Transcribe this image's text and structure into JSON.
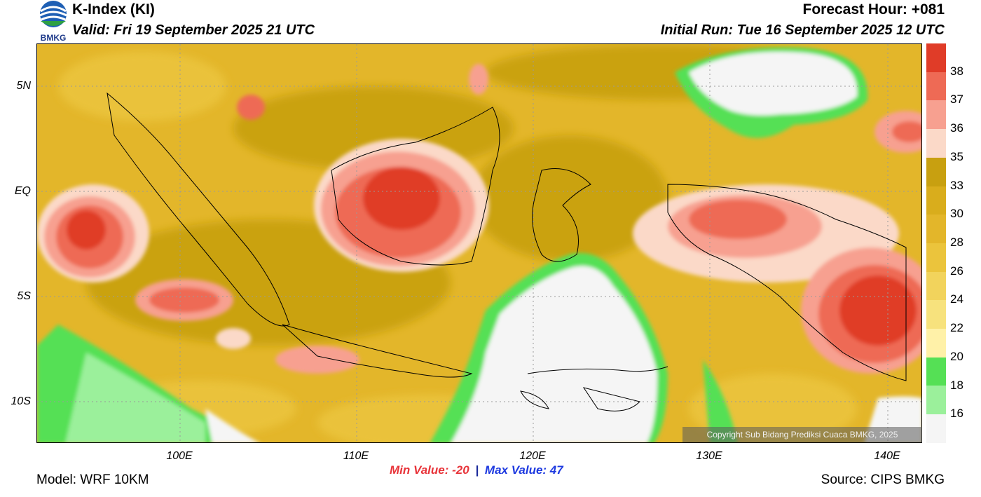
{
  "header": {
    "title": "K-Index (KI)",
    "valid": "Valid: Fri 19 September 2025 21 UTC",
    "forecast_hour": "Forecast Hour: +081",
    "initial_run": "Initial Run: Tue 16 September 2025 12 UTC",
    "logo_text": "BMKG"
  },
  "map": {
    "lat_labels": [
      "5N",
      "EQ",
      "5S",
      "10S"
    ],
    "lon_labels": [
      "100E",
      "110E",
      "120E",
      "130E",
      "140E"
    ],
    "copyright": "Copyright Sub Bidang Prediksi Cuaca BMKG, 2025"
  },
  "legend": {
    "labels": [
      "38",
      "37",
      "36",
      "35",
      "33",
      "30",
      "28",
      "26",
      "24",
      "22",
      "20",
      "18",
      "16"
    ],
    "colors": [
      "#e03c28",
      "#ee6a55",
      "#f7a090",
      "#fbd9c8",
      "#c8a010",
      "#d9ad1c",
      "#e3b62a",
      "#ebc43c",
      "#f2d35c",
      "#f7e27d",
      "#fff1a8",
      "#55e055",
      "#9bf09b",
      "#f5f5f5"
    ]
  },
  "stats": {
    "min_label": "Min Value: -20",
    "separator": "|",
    "max_label": "Max Value:  47"
  },
  "footer": {
    "model": "Model: WRF 10KM",
    "source": "Source: CIPS BMKG"
  }
}
